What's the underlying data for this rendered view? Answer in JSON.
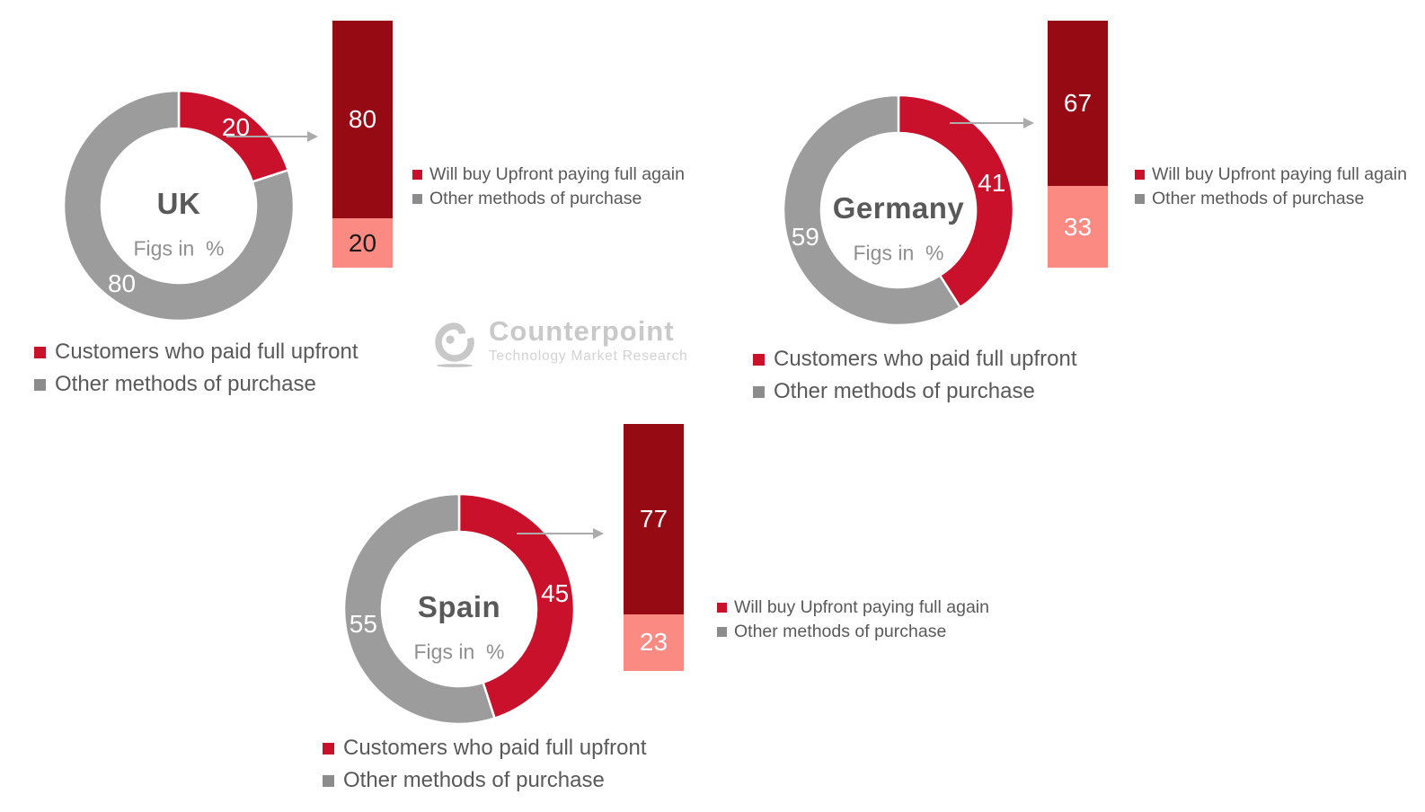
{
  "watermark": {
    "brand": "Counterpoint",
    "tagline": "Technology Market Research"
  },
  "colors": {
    "donut_red": "#C9112B",
    "donut_gray": "#9C9C9C",
    "bar_dark_red": "#960A13",
    "bar_salmon": "#FA8A82",
    "legend_square_red": "#C9112B",
    "legend_square_gray": "#8C8C8C",
    "legend_text": "#595959",
    "center_note_text": "#8F8F8F",
    "arrow_gray": "#ABABAB",
    "watermark_gray": "#C9C9C9"
  },
  "chart_data": [
    {
      "type": "donut-with-linked-stacked-bar",
      "country": "UK",
      "center_label": "UK",
      "center_note": "Figs in  %",
      "units": "%",
      "donut_segments": [
        {
          "label": "Customers who paid full upfront",
          "value": 20,
          "color": "#C9112B"
        },
        {
          "label": "Other methods of purchase",
          "value": 80,
          "color": "#9C9C9C"
        }
      ],
      "bar_segments": [
        {
          "label": "Will buy Upfront paying full again",
          "value": 80,
          "color": "#960A13",
          "value_text_color": "#FFFFFF"
        },
        {
          "label": "Other methods of purchase",
          "value": 20,
          "color": "#FA8A82",
          "value_text_color": "#1A1A1A"
        }
      ],
      "donut_legend": [
        "Customers who paid full upfront",
        "Other methods of purchase"
      ],
      "bar_legend": [
        "Will buy Upfront paying full again",
        "Other methods of purchase"
      ]
    },
    {
      "type": "donut-with-linked-stacked-bar",
      "country": "Germany",
      "center_label": "Germany",
      "center_note": "Figs in  %",
      "units": "%",
      "donut_segments": [
        {
          "label": "Customers who paid full upfront",
          "value": 41,
          "color": "#C9112B"
        },
        {
          "label": "Other methods of purchase",
          "value": 59,
          "color": "#9C9C9C"
        }
      ],
      "bar_segments": [
        {
          "label": "Will buy Upfront paying full again",
          "value": 67,
          "color": "#960A13",
          "value_text_color": "#FFFFFF"
        },
        {
          "label": "Other methods of purchase",
          "value": 33,
          "color": "#FA8A82",
          "value_text_color": "#FFFFFF"
        }
      ],
      "donut_legend": [
        "Customers who paid full upfront",
        "Other methods of purchase"
      ],
      "bar_legend": [
        "Will buy Upfront paying full again",
        "Other methods of purchase"
      ]
    },
    {
      "type": "donut-with-linked-stacked-bar",
      "country": "Spain",
      "center_label": "Spain",
      "center_note": "Figs in  %",
      "units": "%",
      "donut_segments": [
        {
          "label": "Customers who paid full upfront",
          "value": 45,
          "color": "#C9112B"
        },
        {
          "label": "Other methods of purchase",
          "value": 55,
          "color": "#9C9C9C"
        }
      ],
      "bar_segments": [
        {
          "label": "Will buy Upfront paying full again",
          "value": 77,
          "color": "#960A13",
          "value_text_color": "#FFFFFF"
        },
        {
          "label": "Other methods of purchase",
          "value": 23,
          "color": "#FA8A82",
          "value_text_color": "#FFFFFF"
        }
      ],
      "donut_legend": [
        "Customers who paid full upfront",
        "Other methods of purchase"
      ],
      "bar_legend": [
        "Will buy Upfront paying full again",
        "Other methods of purchase"
      ]
    }
  ]
}
